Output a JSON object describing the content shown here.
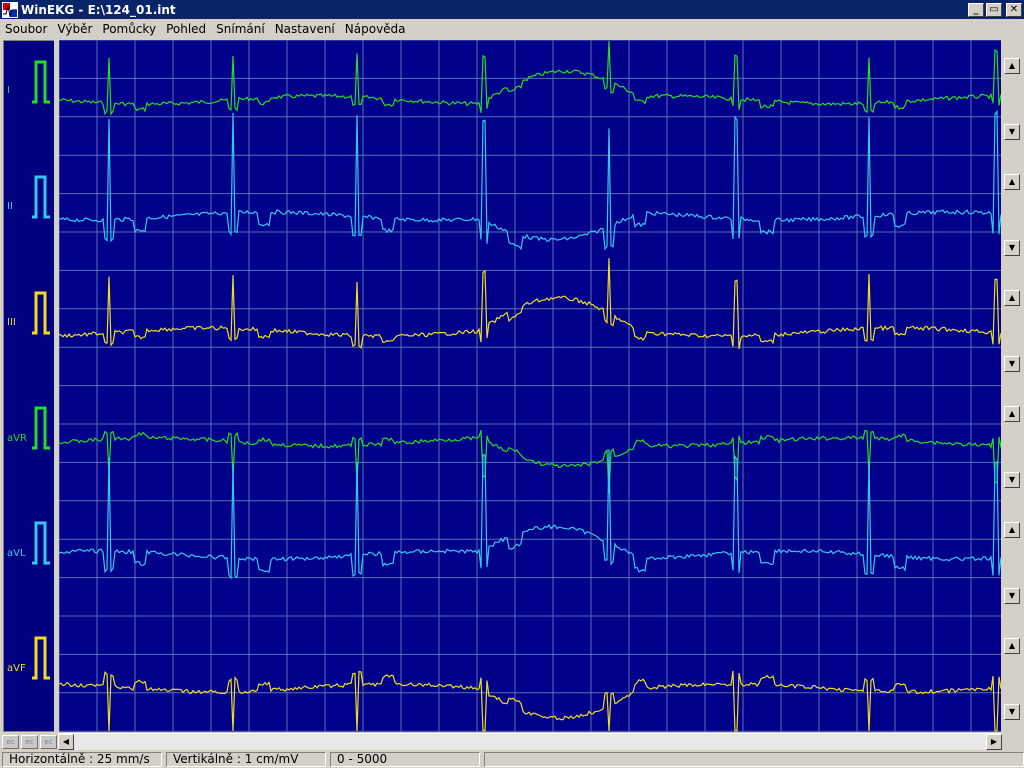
{
  "window": {
    "title": "WinEKG - E:\\124_01.int",
    "minimize": "_",
    "maximize": "▭",
    "close": "✕"
  },
  "menu": [
    {
      "label": "Soubor"
    },
    {
      "label": "Výběr"
    },
    {
      "label": "Pomůcky"
    },
    {
      "label": "Pohled"
    },
    {
      "label": "Snímání"
    },
    {
      "label": "Nastavení"
    },
    {
      "label": "Nápověda"
    }
  ],
  "leads": [
    {
      "name": "I",
      "color": "#22dd22"
    },
    {
      "name": "II",
      "color": "#33c8ee"
    },
    {
      "name": "III",
      "color": "#eedd22"
    },
    {
      "name": "aVR",
      "color": "#22dd22"
    },
    {
      "name": "aVL",
      "color": "#33c8ee"
    },
    {
      "name": "aVF",
      "color": "#eedd22"
    }
  ],
  "mini_buttons": [
    "ec",
    "ec",
    "ec"
  ],
  "status": {
    "horizontal": "Horizontálně : 25 mm/s",
    "vertical": "Vertikálně : 1 cm/mV",
    "range": "0 - 5000"
  },
  "colors": {
    "plot_background": "#00008b",
    "grid": "#5a6fb0",
    "title_bar": "#0a246a"
  }
}
